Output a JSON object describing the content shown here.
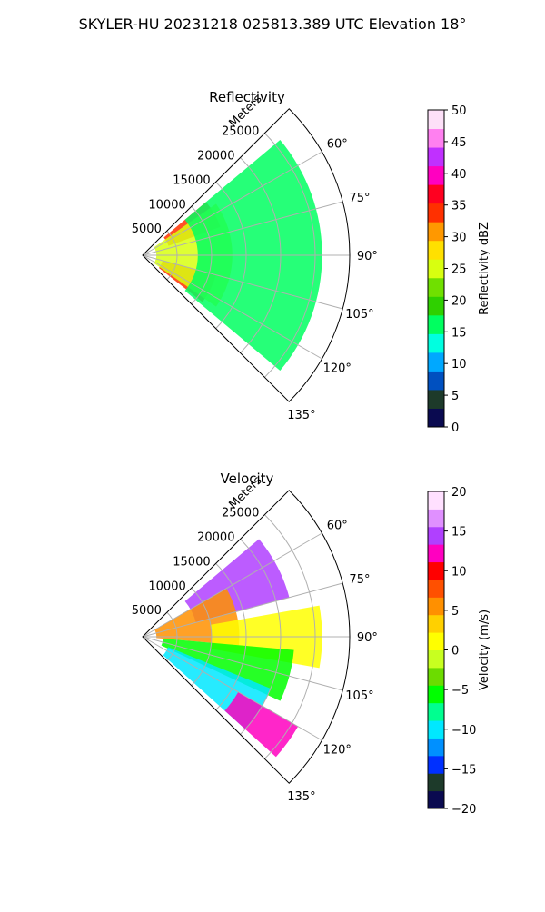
{
  "figure_title": "SKYLER-HU  20231218  025813.389 UTC Elevation 18°",
  "panels": [
    {
      "id": "reflectivity",
      "title": "Reflectivity",
      "range_axis_label": "Meters",
      "range_ticks": [
        "5000",
        "10000",
        "15000",
        "20000",
        "25000"
      ],
      "azimuth_ticks": [
        "60°",
        "75°",
        "90°",
        "105°",
        "120°",
        "135°"
      ],
      "colorbar_label": "Reflectivity dBZ",
      "colorbar_ticks": [
        "0",
        "5",
        "10",
        "15",
        "20",
        "25",
        "30",
        "35",
        "40",
        "45",
        "50"
      ]
    },
    {
      "id": "velocity",
      "title": "Velocity",
      "range_axis_label": "Meters",
      "range_ticks": [
        "5000",
        "10000",
        "15000",
        "20000",
        "25000"
      ],
      "azimuth_ticks": [
        "60°",
        "75°",
        "90°",
        "105°",
        "120°",
        "135°"
      ],
      "colorbar_label": "Velocity (m/s)",
      "colorbar_ticks": [
        "−20",
        "−15",
        "−10",
        "−5",
        "0",
        "5",
        "10",
        "15",
        "20"
      ]
    }
  ],
  "chart_data": [
    {
      "type": "heatmap",
      "subtype": "polar-sector (radar PPI)",
      "title": "Reflectivity",
      "theta_axis": {
        "label": "azimuth",
        "range_deg": [
          45,
          135
        ],
        "ticks_deg": [
          60,
          75,
          90,
          105,
          120,
          135
        ]
      },
      "r_axis": {
        "label": "Meters",
        "range": [
          0,
          30000
        ],
        "ticks": [
          5000,
          10000,
          15000,
          20000,
          25000
        ]
      },
      "colorbar": {
        "label": "Reflectivity dBZ",
        "range": [
          0,
          50
        ],
        "ticks": [
          0,
          5,
          10,
          15,
          20,
          25,
          30,
          35,
          40,
          45,
          50
        ]
      },
      "grid": true,
      "approx_field": [
        {
          "azimuth_deg": [
            50,
            70
          ],
          "range_m": [
            4000,
            12000
          ],
          "dbz": 35
        },
        {
          "azimuth_deg": [
            105,
            128
          ],
          "range_m": [
            3000,
            11000
          ],
          "dbz": 35
        },
        {
          "azimuth_deg": [
            55,
            125
          ],
          "range_m": [
            2000,
            13000
          ],
          "dbz": 25
        },
        {
          "azimuth_deg": [
            50,
            130
          ],
          "range_m": [
            8000,
            26000
          ],
          "dbz": 16
        }
      ]
    },
    {
      "type": "heatmap",
      "subtype": "polar-sector (radar PPI)",
      "title": "Velocity",
      "theta_axis": {
        "label": "azimuth",
        "range_deg": [
          45,
          135
        ],
        "ticks_deg": [
          60,
          75,
          90,
          105,
          120,
          135
        ]
      },
      "r_axis": {
        "label": "Meters",
        "range": [
          0,
          30000
        ],
        "ticks": [
          5000,
          10000,
          15000,
          20000,
          25000
        ]
      },
      "colorbar": {
        "label": "Velocity (m/s)",
        "range": [
          -20,
          20
        ],
        "ticks": [
          -20,
          -15,
          -10,
          -5,
          0,
          5,
          10,
          15,
          20
        ]
      },
      "grid": true,
      "approx_field": [
        {
          "azimuth_deg": [
            50,
            75
          ],
          "range_m": [
            8000,
            22000
          ],
          "ms": 14
        },
        {
          "azimuth_deg": [
            60,
            95
          ],
          "range_m": [
            2000,
            14000
          ],
          "ms": 5
        },
        {
          "azimuth_deg": [
            80,
            100
          ],
          "range_m": [
            10000,
            26000
          ],
          "ms": 2
        },
        {
          "azimuth_deg": [
            95,
            115
          ],
          "range_m": [
            3000,
            22000
          ],
          "ms": -5
        },
        {
          "azimuth_deg": [
            112,
            132
          ],
          "range_m": [
            4000,
            20000
          ],
          "ms": -11
        },
        {
          "azimuth_deg": [
            120,
            132
          ],
          "range_m": [
            16000,
            26000
          ],
          "ms": 13
        }
      ]
    }
  ],
  "colors": {
    "axis": "#000000",
    "grid": "#b0b0b0",
    "reflectivity_colormap": [
      "#0a0a50",
      "#1d3a2a",
      "#0050c0",
      "#00a8ff",
      "#00ffe0",
      "#00ff60",
      "#2fd000",
      "#70e000",
      "#d8ff10",
      "#ffe000",
      "#ff9800",
      "#ff3000",
      "#ff0020",
      "#ff00c0",
      "#c030ff",
      "#ff80f0",
      "#fde0f8"
    ],
    "velocity_colormap": [
      "#0a0a50",
      "#1d3a2a",
      "#0030ff",
      "#0090ff",
      "#00e8ff",
      "#00ff90",
      "#00ff00",
      "#6cdc00",
      "#c8ff20",
      "#ffff00",
      "#ffd000",
      "#ff9000",
      "#ff5000",
      "#ff0000",
      "#ff00c0",
      "#b040ff",
      "#e090ff",
      "#ffe0ff"
    ]
  }
}
